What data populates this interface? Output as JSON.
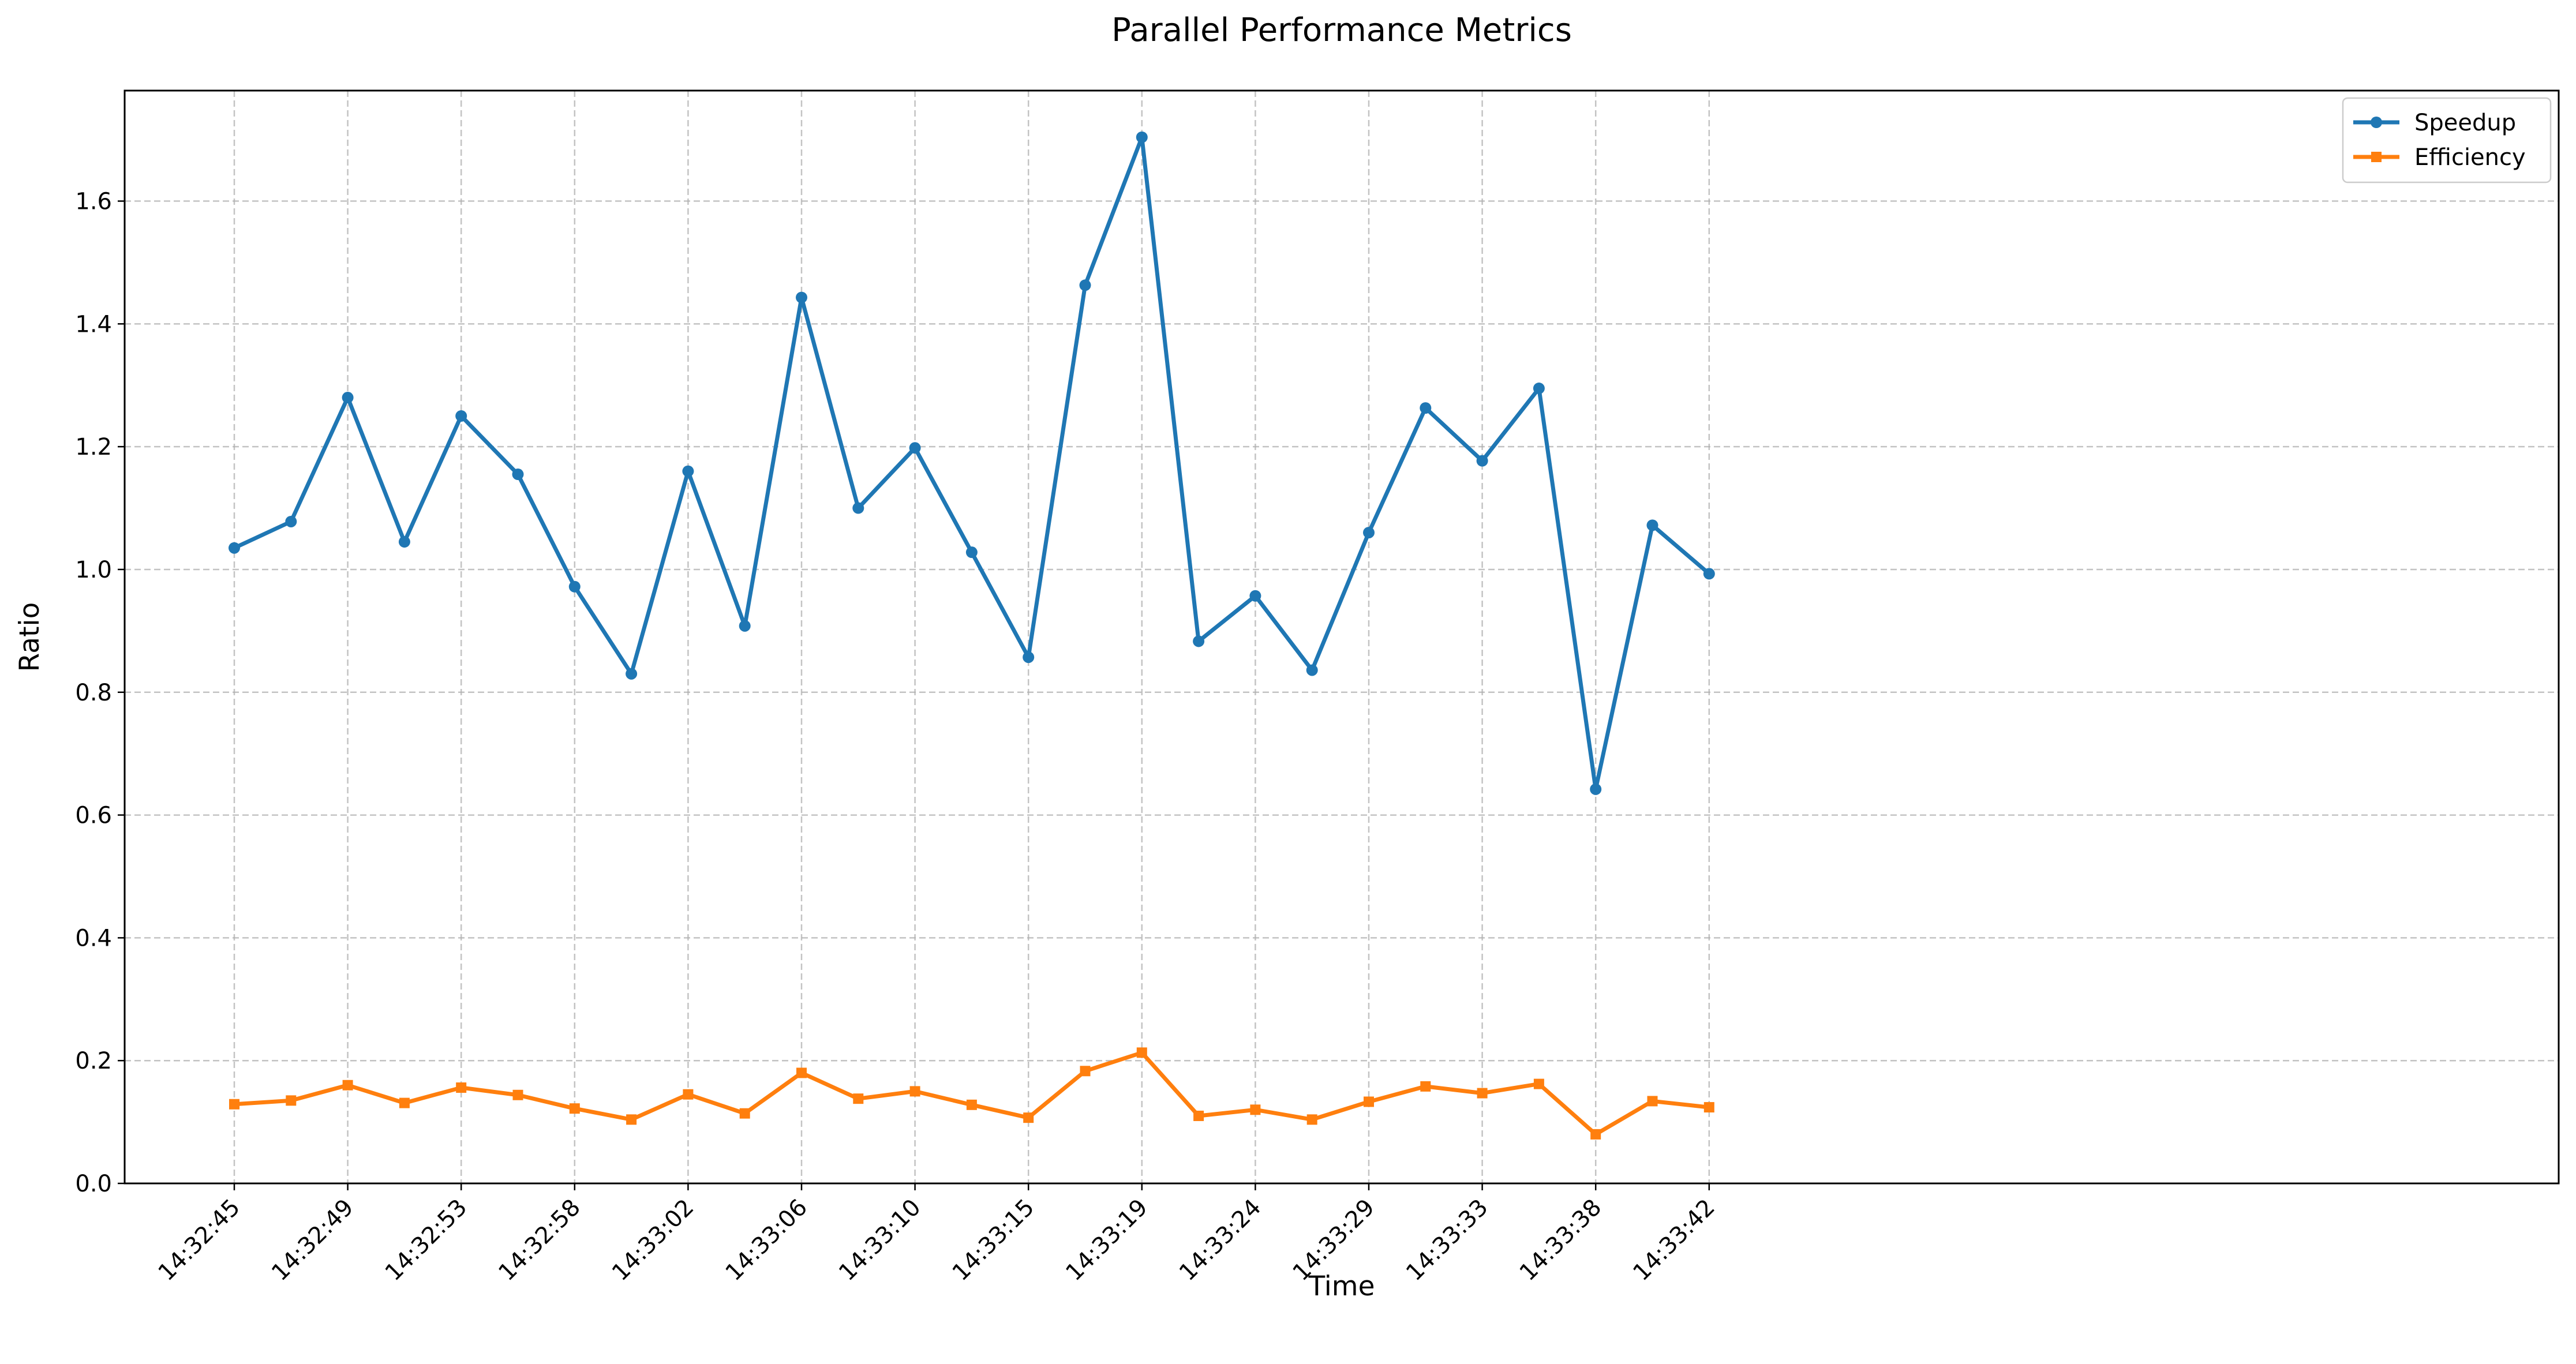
{
  "chart_data": {
    "type": "line",
    "title": "Parallel Performance Metrics",
    "xlabel": "Time",
    "ylabel": "Ratio",
    "ylim": [
      0,
      1.78
    ],
    "yticks": [
      0.0,
      0.2,
      0.4,
      0.6,
      0.8,
      1.0,
      1.2,
      1.4,
      1.6
    ],
    "ytick_labels": [
      "0.0",
      "0.2",
      "0.4",
      "0.6",
      "0.8",
      "1.0",
      "1.2",
      "1.4",
      "1.6"
    ],
    "x_tick_labels": [
      "14:32:45",
      "14:32:49",
      "14:32:53",
      "14:32:58",
      "14:33:02",
      "14:33:06",
      "14:33:10",
      "14:33:15",
      "14:33:19",
      "14:33:24",
      "14:33:29",
      "14:33:33",
      "14:33:38",
      "14:33:42"
    ],
    "grid": true,
    "legend_position": "top-right",
    "series": [
      {
        "name": "Speedup",
        "color": "#1f77b4",
        "marker": "circle",
        "values": [
          1.035,
          1.078,
          1.28,
          1.045,
          1.25,
          1.155,
          0.972,
          0.83,
          1.16,
          0.908,
          1.443,
          1.1,
          1.198,
          1.028,
          0.857,
          1.463,
          1.704,
          0.883,
          0.957,
          0.836,
          1.06,
          1.263,
          1.177,
          1.295,
          0.642,
          1.072,
          0.993
        ]
      },
      {
        "name": "Efficiency",
        "color": "#ff7f0e",
        "marker": "square",
        "values": [
          0.129,
          0.135,
          0.16,
          0.131,
          0.156,
          0.144,
          0.122,
          0.104,
          0.145,
          0.114,
          0.18,
          0.138,
          0.15,
          0.128,
          0.107,
          0.183,
          0.213,
          0.11,
          0.12,
          0.104,
          0.133,
          0.158,
          0.147,
          0.162,
          0.08,
          0.134,
          0.124
        ]
      }
    ]
  }
}
